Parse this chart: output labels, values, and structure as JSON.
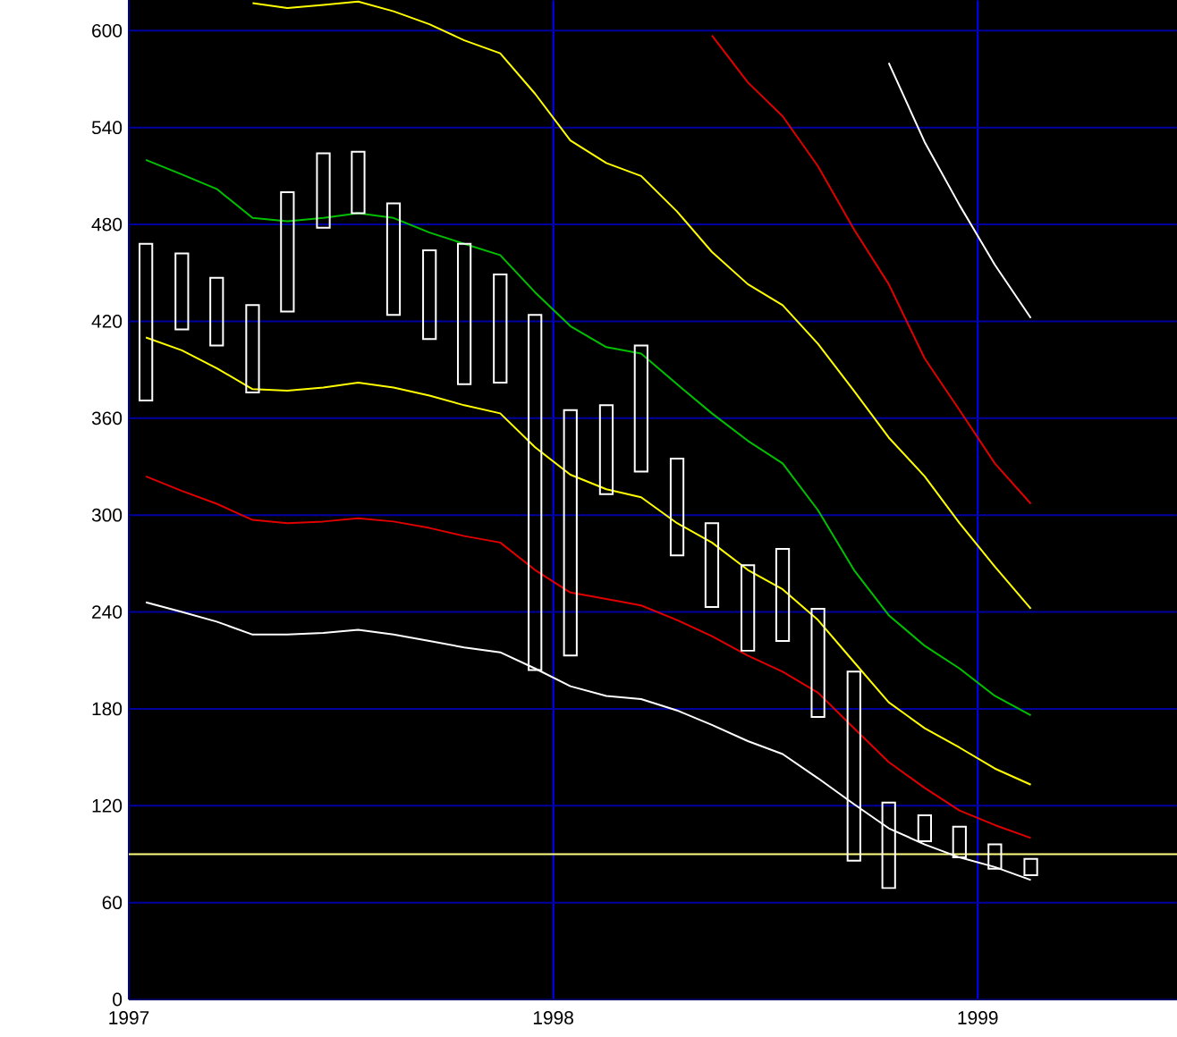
{
  "chart_data": {
    "type": "candlestick",
    "color": "#ffffff",
    "x": [
      "1997-01-16",
      "1997-02-15",
      "1997-03-16",
      "1997-04-16",
      "1997-05-16",
      "1997-06-16",
      "1997-07-16",
      "1997-08-16",
      "1997-09-16",
      "1997-10-16",
      "1997-11-16",
      "1997-12-16",
      "1998-01-16",
      "1998-02-15",
      "1998-03-16",
      "1998-04-16",
      "1998-05-16",
      "1998-06-16",
      "1998-07-16",
      "1998-08-16",
      "1998-09-16",
      "1998-10-16",
      "1998-11-16",
      "1998-12-16",
      "1999-01-16",
      "1999-02-15"
    ],
    "ohlc": [
      [
        468,
        468,
        371,
        371
      ],
      [
        462,
        462,
        415,
        415
      ],
      [
        447,
        447,
        405,
        405
      ],
      [
        430,
        430,
        376,
        376
      ],
      [
        500,
        500,
        426,
        426
      ],
      [
        524,
        524,
        478,
        478
      ],
      [
        525,
        525,
        487,
        487
      ],
      [
        493,
        493,
        424,
        424
      ],
      [
        464,
        464,
        409,
        409
      ],
      [
        468,
        468,
        381,
        381
      ],
      [
        449,
        449,
        382,
        382
      ],
      [
        424,
        424,
        204,
        204
      ],
      [
        365,
        365,
        213,
        213
      ],
      [
        368,
        368,
        313,
        313
      ],
      [
        405,
        405,
        327,
        327
      ],
      [
        335,
        335,
        275,
        275
      ],
      [
        295,
        295,
        243,
        243
      ],
      [
        269,
        269,
        216,
        216
      ],
      [
        279,
        279,
        222,
        222
      ],
      [
        242,
        242,
        175,
        175
      ],
      [
        203,
        203,
        86,
        86
      ],
      [
        122,
        122,
        69,
        69
      ],
      [
        114,
        114,
        98,
        98
      ],
      [
        107,
        107,
        88,
        88
      ],
      [
        96,
        96,
        81,
        81
      ],
      [
        87,
        87,
        77,
        77
      ]
    ],
    "series": [
      {
        "type": "line",
        "color": "#ffffff",
        "values": [
          null,
          null,
          null,
          null,
          null,
          null,
          null,
          null,
          null,
          null,
          null,
          null,
          null,
          null,
          null,
          null,
          null,
          null,
          null,
          null,
          null,
          580,
          531,
          492,
          455,
          422
        ]
      },
      {
        "type": "line",
        "color": "#e00000",
        "values": [
          null,
          null,
          null,
          null,
          null,
          null,
          null,
          null,
          null,
          null,
          null,
          null,
          null,
          null,
          null,
          null,
          597,
          568,
          547,
          516,
          477,
          443,
          397,
          365,
          332,
          307
        ]
      },
      {
        "type": "line",
        "color": "#ffff00",
        "values": [
          null,
          null,
          null,
          617,
          614,
          616,
          618,
          612,
          604,
          594,
          586,
          561,
          532,
          518,
          510,
          488,
          463,
          443,
          430,
          406,
          377,
          348,
          324,
          295,
          268,
          242
        ]
      },
      {
        "type": "line",
        "color": "#00c000",
        "values": [
          520,
          511,
          502,
          484,
          482,
          484,
          487,
          484,
          475,
          468,
          461,
          438,
          417,
          404,
          400,
          381,
          363,
          346,
          332,
          303,
          266,
          238,
          219,
          205,
          188,
          176
        ]
      },
      {
        "type": "line",
        "color": "#ffff00",
        "values": [
          410,
          402,
          391,
          378,
          377,
          379,
          382,
          379,
          374,
          368,
          363,
          342,
          325,
          316,
          311,
          295,
          283,
          266,
          254,
          235,
          209,
          184,
          168,
          156,
          143,
          133
        ]
      },
      {
        "type": "line",
        "color": "#e00000",
        "values": [
          324,
          315,
          307,
          297,
          295,
          296,
          298,
          296,
          292,
          287,
          283,
          266,
          252,
          248,
          244,
          235,
          225,
          213,
          203,
          190,
          168,
          147,
          131,
          117,
          108,
          100
        ]
      },
      {
        "type": "line",
        "color": "#ffffff",
        "values": [
          246,
          240,
          234,
          226,
          226,
          227,
          229,
          226,
          222,
          218,
          215,
          205,
          194,
          188,
          186,
          179,
          170,
          160,
          152,
          137,
          121,
          106,
          96,
          88,
          82,
          74
        ]
      }
    ],
    "ref_lines": [
      {
        "axis": "y",
        "value": 90,
        "color": "#ffff80"
      }
    ],
    "xlim": [
      "1997-01-01",
      "1999-06-20"
    ],
    "xticks": [
      {
        "value": "1997-01-01",
        "label": "1997"
      },
      {
        "value": "1998-01-01",
        "label": "1998"
      },
      {
        "value": "1999-01-01",
        "label": "1999"
      }
    ],
    "ylim": [
      0,
      619
    ],
    "yticks": [
      0,
      60,
      120,
      180,
      240,
      300,
      360,
      420,
      480,
      540,
      600
    ],
    "grid": true
  }
}
